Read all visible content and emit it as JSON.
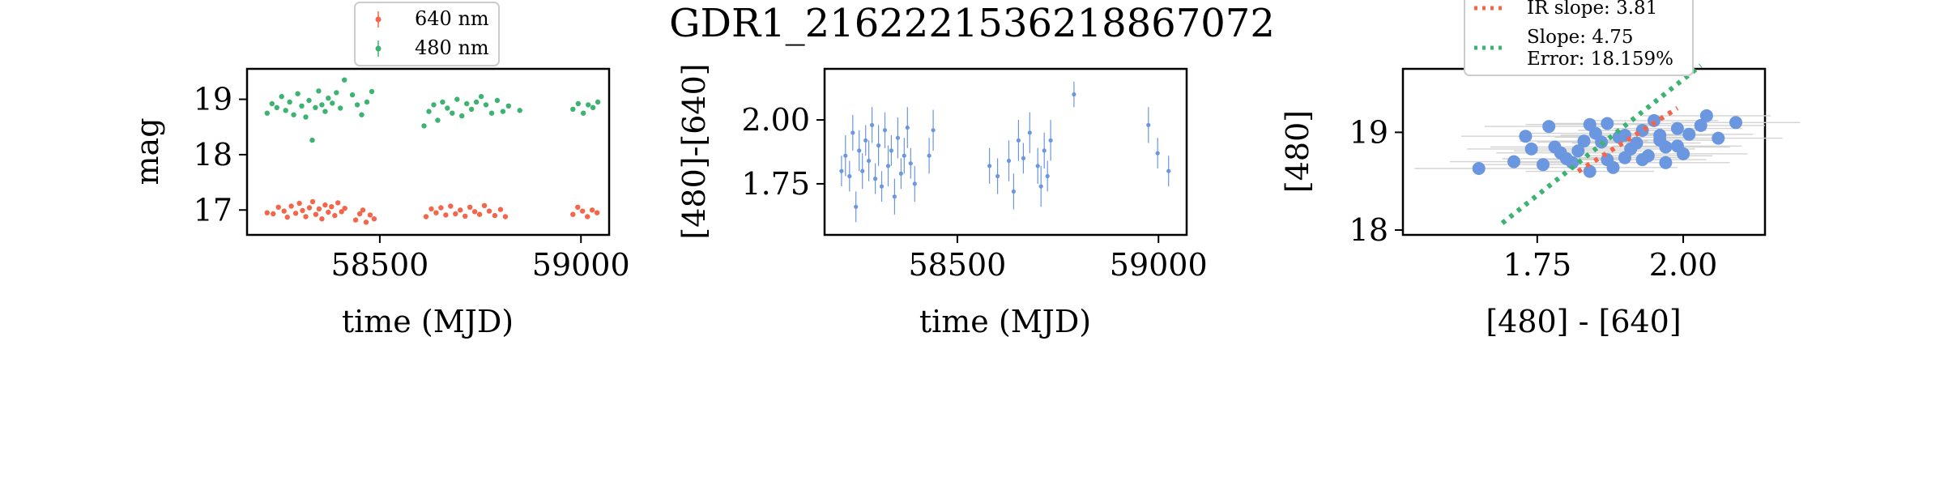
{
  "figure": {
    "title": "GDR1_2162221536218867072"
  },
  "colors": {
    "red": "#f4664a",
    "green": "#3cb371",
    "blue": "#6b96e0",
    "gray": "#d3d3d3",
    "axis": "#000000"
  },
  "chart_data": [
    {
      "type": "scatter",
      "panel": "magnitude-lightcurve",
      "title": "",
      "xlabel": "time (MJD)",
      "ylabel": "mag",
      "xlim": [
        58170,
        59070
      ],
      "ylim": [
        19.55,
        16.55
      ],
      "y_inverted": true,
      "xticks": [
        58500,
        59000
      ],
      "yticks": [
        17,
        18,
        19
      ],
      "xtick_labels": [
        "58500",
        "59000"
      ],
      "ytick_labels": [
        "17",
        "18",
        "19"
      ],
      "legend": {
        "placement": "above-top-center",
        "entries": [
          "640 nm",
          "480 nm"
        ]
      },
      "series": [
        {
          "name": "640 nm",
          "color": "red",
          "points": [
            [
              58220,
              16.95
            ],
            [
              58235,
              16.93
            ],
            [
              58248,
              17.05
            ],
            [
              58262,
              16.98
            ],
            [
              58270,
              16.87
            ],
            [
              58280,
              17.07
            ],
            [
              58291,
              16.94
            ],
            [
              58300,
              17.12
            ],
            [
              58308,
              16.99
            ],
            [
              58316,
              16.88
            ],
            [
              58325,
              17.04
            ],
            [
              58333,
              17.15
            ],
            [
              58341,
              16.92
            ],
            [
              58349,
              17.02
            ],
            [
              58356,
              16.84
            ],
            [
              58364,
              17.09
            ],
            [
              58372,
              16.96
            ],
            [
              58380,
              17.06
            ],
            [
              58388,
              16.9
            ],
            [
              58396,
              17.13
            ],
            [
              58405,
              16.97
            ],
            [
              58413,
              17.03
            ],
            [
              58440,
              16.82
            ],
            [
              58450,
              16.93
            ],
            [
              58458,
              17.0
            ],
            [
              58466,
              16.78
            ],
            [
              58476,
              16.91
            ],
            [
              58486,
              16.84
            ],
            [
              58615,
              16.88
            ],
            [
              58628,
              17.02
            ],
            [
              58640,
              16.95
            ],
            [
              58652,
              17.04
            ],
            [
              58664,
              16.91
            ],
            [
              58676,
              17.07
            ],
            [
              58688,
              16.93
            ],
            [
              58700,
              17.0
            ],
            [
              58712,
              16.89
            ],
            [
              58724,
              17.05
            ],
            [
              58736,
              16.97
            ],
            [
              58748,
              16.92
            ],
            [
              58760,
              17.08
            ],
            [
              58772,
              16.98
            ],
            [
              58786,
              16.9
            ],
            [
              58800,
              17.01
            ],
            [
              58812,
              16.88
            ],
            [
              58980,
              16.92
            ],
            [
              58992,
              17.05
            ],
            [
              59004,
              16.98
            ],
            [
              59016,
              16.88
            ],
            [
              59028,
              17.0
            ],
            [
              59040,
              16.95
            ]
          ]
        },
        {
          "name": "480 nm",
          "color": "green",
          "points": [
            [
              58220,
              18.75
            ],
            [
              58232,
              18.92
            ],
            [
              58244,
              18.85
            ],
            [
              58256,
              19.05
            ],
            [
              58266,
              18.8
            ],
            [
              58276,
              18.95
            ],
            [
              58286,
              18.72
            ],
            [
              58296,
              19.1
            ],
            [
              58306,
              18.88
            ],
            [
              58316,
              18.68
            ],
            [
              58324,
              18.98
            ],
            [
              58332,
              18.26
            ],
            [
              58340,
              18.85
            ],
            [
              58348,
              19.15
            ],
            [
              58356,
              18.9
            ],
            [
              58364,
              18.78
            ],
            [
              58372,
              19.02
            ],
            [
              58382,
              18.93
            ],
            [
              58392,
              19.12
            ],
            [
              58402,
              18.84
            ],
            [
              58412,
              19.35
            ],
            [
              58432,
              19.08
            ],
            [
              58444,
              18.9
            ],
            [
              58455,
              18.72
            ],
            [
              58468,
              18.95
            ],
            [
              58480,
              19.14
            ],
            [
              58610,
              18.52
            ],
            [
              58622,
              18.78
            ],
            [
              58634,
              18.9
            ],
            [
              58644,
              18.62
            ],
            [
              58656,
              18.95
            ],
            [
              58668,
              18.84
            ],
            [
              58680,
              18.75
            ],
            [
              58692,
              19.0
            ],
            [
              58704,
              18.7
            ],
            [
              58716,
              18.92
            ],
            [
              58728,
              18.82
            ],
            [
              58740,
              18.95
            ],
            [
              58752,
              19.05
            ],
            [
              58764,
              18.9
            ],
            [
              58778,
              18.75
            ],
            [
              58792,
              18.98
            ],
            [
              58806,
              18.78
            ],
            [
              58820,
              18.88
            ],
            [
              58848,
              18.8
            ],
            [
              58980,
              18.82
            ],
            [
              58993,
              18.92
            ],
            [
              59006,
              18.75
            ],
            [
              59018,
              18.9
            ],
            [
              59030,
              18.85
            ],
            [
              59042,
              18.95
            ]
          ]
        }
      ]
    },
    {
      "type": "scatter",
      "panel": "color-lightcurve",
      "title": "",
      "xlabel": "time (MJD)",
      "ylabel": "[480]-[640]",
      "xlim": [
        58170,
        59070
      ],
      "ylim": [
        2.2,
        1.55
      ],
      "y_inverted": true,
      "xticks": [
        58500,
        59000
      ],
      "yticks": [
        1.75,
        2.0
      ],
      "xtick_labels": [
        "58500",
        "59000"
      ],
      "ytick_labels": [
        "1.75",
        "2.00"
      ],
      "series": [
        {
          "name": "",
          "color": "blue",
          "error_bars": true,
          "points": [
            [
              58212,
              1.8,
              0.06
            ],
            [
              58222,
              1.86,
              0.08
            ],
            [
              58232,
              1.78,
              0.06
            ],
            [
              58240,
              1.95,
              0.07
            ],
            [
              58248,
              1.66,
              0.06
            ],
            [
              58256,
              1.88,
              0.08
            ],
            [
              58264,
              1.8,
              0.07
            ],
            [
              58272,
              1.92,
              0.06
            ],
            [
              58280,
              1.84,
              0.08
            ],
            [
              58288,
              1.98,
              0.07
            ],
            [
              58296,
              1.77,
              0.06
            ],
            [
              58304,
              1.9,
              0.08
            ],
            [
              58312,
              1.74,
              0.06
            ],
            [
              58320,
              1.96,
              0.07
            ],
            [
              58328,
              1.82,
              0.08
            ],
            [
              58336,
              1.88,
              0.06
            ],
            [
              58344,
              1.7,
              0.07
            ],
            [
              58352,
              1.93,
              0.08
            ],
            [
              58360,
              1.79,
              0.06
            ],
            [
              58368,
              1.86,
              0.07
            ],
            [
              58376,
              1.97,
              0.08
            ],
            [
              58384,
              1.83,
              0.06
            ],
            [
              58394,
              1.75,
              0.07
            ],
            [
              58430,
              1.86,
              0.07
            ],
            [
              58440,
              1.96,
              0.08
            ],
            [
              58580,
              1.82,
              0.07
            ],
            [
              58600,
              1.78,
              0.07
            ],
            [
              58628,
              1.84,
              0.08
            ],
            [
              58640,
              1.72,
              0.07
            ],
            [
              58652,
              1.92,
              0.08
            ],
            [
              58664,
              1.85,
              0.06
            ],
            [
              58680,
              1.95,
              0.08
            ],
            [
              58700,
              1.82,
              0.07
            ],
            [
              58708,
              1.74,
              0.08
            ],
            [
              58716,
              1.88,
              0.07
            ],
            [
              58724,
              1.78,
              0.06
            ],
            [
              58732,
              1.92,
              0.08
            ],
            [
              58790,
              2.1,
              0.05
            ],
            [
              58975,
              1.98,
              0.07
            ],
            [
              58998,
              1.87,
              0.06
            ],
            [
              59025,
              1.8,
              0.06
            ]
          ]
        }
      ]
    },
    {
      "type": "scatter",
      "panel": "color-magnitude",
      "title": "",
      "xlabel": "[480] - [640]",
      "ylabel": "[480]",
      "xlim": [
        1.52,
        2.14
      ],
      "ylim": [
        19.65,
        17.95
      ],
      "y_inverted": true,
      "xticks": [
        1.75,
        2.0
      ],
      "yticks": [
        18,
        19
      ],
      "xtick_labels": [
        "1.75",
        "2.00"
      ],
      "ytick_labels": [
        "18",
        "19"
      ],
      "legend": {
        "placement": "above-top-center",
        "entries": [
          "IR slope: 3.81",
          "Slope: 4.75",
          "Error: 18.159%"
        ]
      },
      "lines": [
        {
          "name": "IR slope: 3.81",
          "color": "red",
          "style": "dotted",
          "slope": 3.81,
          "x_range": [
            1.82,
            1.99
          ],
          "y_at_start": 18.6
        },
        {
          "name": "Slope: 4.75",
          "color": "green",
          "style": "dotted",
          "slope": 4.75,
          "x_range": [
            1.69,
            2.03
          ],
          "y_at_start": 18.07
        }
      ],
      "series": [
        {
          "name": "",
          "color": "blue",
          "error_bars": true,
          "points": [
            [
              1.65,
              18.63
            ],
            [
              1.71,
              18.7
            ],
            [
              1.76,
              18.67
            ],
            [
              1.73,
              18.96
            ],
            [
              1.78,
              18.85
            ],
            [
              1.8,
              18.73
            ],
            [
              1.82,
              18.81
            ],
            [
              1.84,
              18.6
            ],
            [
              1.86,
              18.9
            ],
            [
              1.87,
              18.72
            ],
            [
              1.89,
              18.95
            ],
            [
              1.91,
              18.83
            ],
            [
              1.93,
              19.02
            ],
            [
              1.94,
              18.76
            ],
            [
              1.96,
              18.92
            ],
            [
              1.97,
              18.69
            ],
            [
              1.99,
              18.86
            ],
            [
              2.01,
              18.98
            ],
            [
              2.03,
              19.07
            ],
            [
              2.06,
              18.94
            ],
            [
              2.09,
              19.1
            ],
            [
              1.77,
              19.06
            ],
            [
              1.84,
              19.08
            ],
            [
              1.9,
              18.74
            ],
            [
              1.85,
              18.99
            ],
            [
              1.79,
              18.79
            ],
            [
              1.95,
              19.12
            ],
            [
              1.88,
              18.64
            ],
            [
              1.99,
              19.04
            ],
            [
              2.04,
              19.17
            ],
            [
              1.83,
              18.91
            ],
            [
              1.92,
              18.89
            ],
            [
              1.81,
              18.69
            ],
            [
              2.0,
              18.78
            ],
            [
              1.74,
              18.83
            ],
            [
              1.96,
              18.97
            ],
            [
              1.87,
              19.09
            ],
            [
              1.9,
              18.97
            ],
            [
              1.93,
              18.72
            ],
            [
              1.97,
              18.85
            ]
          ]
        }
      ]
    }
  ]
}
